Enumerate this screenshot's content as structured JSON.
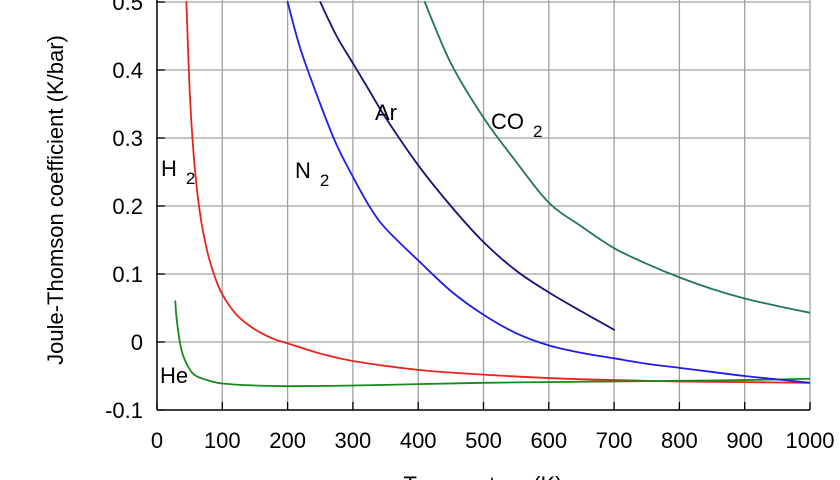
{
  "chart_data": {
    "type": "line",
    "title": "",
    "xlabel": "Temperature (K)",
    "ylabel": "Joule-Thomson coefficient (K/bar)",
    "xlim": [
      0,
      1000
    ],
    "ylim": [
      -0.1,
      0.5
    ],
    "grid": true,
    "x_ticks": [
      0,
      100,
      200,
      300,
      400,
      500,
      600,
      700,
      800,
      900,
      1000
    ],
    "y_ticks": [
      -0.1,
      0,
      0.1,
      0.2,
      0.3,
      0.4,
      0.5
    ],
    "x_tick_labels": [
      "0",
      "100",
      "200",
      "300",
      "400",
      "500",
      "600",
      "700",
      "800",
      "900",
      "1000"
    ],
    "y_tick_labels": [
      "-0.1",
      "0",
      "0.1",
      "0.2",
      "0.3",
      "0.4",
      "0.5"
    ],
    "series": [
      {
        "name": "H 2",
        "label_main": "H",
        "label_sub": "2",
        "color": "#e8231e",
        "x": [
          45,
          50,
          55,
          60,
          65,
          70,
          75,
          80,
          90,
          100,
          120,
          140,
          160,
          180,
          200,
          250,
          300,
          400,
          500,
          600,
          700,
          800,
          900,
          1000
        ],
        "y": [
          0.5,
          0.37,
          0.29,
          0.235,
          0.195,
          0.165,
          0.142,
          0.122,
          0.092,
          0.07,
          0.042,
          0.025,
          0.013,
          0.004,
          -0.002,
          -0.017,
          -0.028,
          -0.041,
          -0.048,
          -0.053,
          -0.056,
          -0.058,
          -0.059,
          -0.06
        ]
      },
      {
        "name": "He",
        "label_main": "He",
        "label_sub": "",
        "color": "#178a1c",
        "x": [
          28,
          30,
          35,
          40,
          50,
          60,
          80,
          100,
          150,
          200,
          300,
          400,
          500,
          600,
          700,
          800,
          900,
          1000
        ],
        "y": [
          0.06,
          0.035,
          0.0,
          -0.02,
          -0.04,
          -0.05,
          -0.057,
          -0.061,
          -0.064,
          -0.065,
          -0.064,
          -0.062,
          -0.06,
          -0.059,
          -0.058,
          -0.057,
          -0.056,
          -0.054
        ]
      },
      {
        "name": "N 2",
        "label_main": "N",
        "label_sub": "2",
        "color": "#1f1de8",
        "x": [
          200,
          220,
          250,
          275,
          300,
          325,
          350,
          400,
          450,
          500,
          550,
          600,
          650,
          700,
          750,
          800,
          850,
          900,
          950,
          1000
        ],
        "y": [
          0.5,
          0.43,
          0.35,
          0.29,
          0.243,
          0.2,
          0.167,
          0.12,
          0.075,
          0.04,
          0.013,
          -0.005,
          -0.016,
          -0.024,
          -0.032,
          -0.038,
          -0.044,
          -0.05,
          -0.055,
          -0.06
        ]
      },
      {
        "name": "Ar",
        "label_main": "Ar",
        "label_sub": "",
        "color": "#12127a",
        "x": [
          250,
          275,
          300,
          325,
          350,
          400,
          450,
          500,
          550,
          600,
          650,
          700
        ],
        "y": [
          0.5,
          0.45,
          0.41,
          0.37,
          0.33,
          0.26,
          0.2,
          0.147,
          0.105,
          0.073,
          0.045,
          0.018
        ]
      },
      {
        "name": "CO 2",
        "label_main": "CO",
        "label_sub": "2",
        "color": "#237858",
        "x": [
          410,
          450,
          500,
          550,
          600,
          650,
          700,
          750,
          800,
          850,
          900,
          950,
          1000
        ],
        "y": [
          0.5,
          0.41,
          0.33,
          0.265,
          0.205,
          0.17,
          0.138,
          0.115,
          0.095,
          0.078,
          0.064,
          0.053,
          0.043
        ]
      }
    ]
  }
}
